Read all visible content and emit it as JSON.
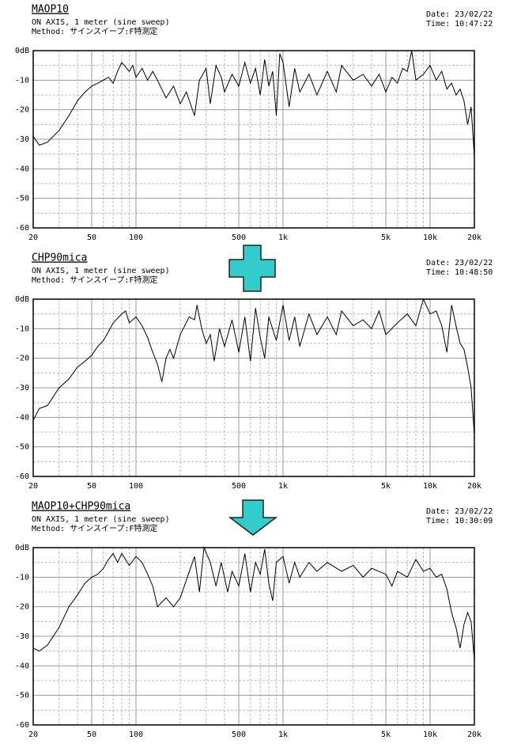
{
  "chart_data": [
    {
      "type": "line",
      "title": "MAOP10",
      "subtitle": "ON AXIS, 1 meter (sine sweep)",
      "method": "Method: サインスイープ:F特測定",
      "date": "Date: 23/02/22",
      "time": "Time: 10:47:22",
      "xscale": "log",
      "grid": true,
      "xlim": [
        20,
        20000
      ],
      "ylim": [
        -60,
        0
      ],
      "xticks": [
        20,
        50,
        100,
        500,
        {
          "value": 1000,
          "label": "1k"
        },
        {
          "value": 5000,
          "label": "5k"
        },
        {
          "value": 10000,
          "label": "10k"
        },
        {
          "value": 20000,
          "label": "20k"
        }
      ],
      "minor_xticks": [
        30,
        40,
        60,
        70,
        80,
        90,
        200,
        300,
        400,
        600,
        700,
        800,
        900,
        2000,
        3000,
        4000,
        6000,
        7000,
        8000,
        9000
      ],
      "yticks": [
        {
          "value": 0,
          "label": "0dB"
        },
        -10,
        -20,
        -30,
        -40,
        -50,
        -60
      ],
      "minor_yticks": [
        -5,
        -15,
        -25,
        -35,
        -45,
        -55
      ],
      "series": [
        {
          "color": "#000000",
          "x": [
            20,
            22,
            25,
            30,
            35,
            40,
            45,
            50,
            55,
            60,
            65,
            70,
            75,
            80,
            90,
            95,
            100,
            110,
            120,
            130,
            140,
            160,
            180,
            200,
            220,
            250,
            270,
            300,
            320,
            350,
            380,
            400,
            450,
            500,
            550,
            600,
            650,
            700,
            750,
            800,
            850,
            900,
            950,
            1000,
            1100,
            1200,
            1300,
            1500,
            1700,
            2000,
            2300,
            2500,
            3000,
            3500,
            4000,
            4500,
            5000,
            5500,
            6000,
            6500,
            7000,
            7500,
            8000,
            9000,
            10000,
            11000,
            12000,
            13000,
            14000,
            15000,
            16000,
            17000,
            18000,
            19000,
            20000
          ],
          "values": [
            -29,
            -32,
            -31,
            -27,
            -22,
            -17,
            -14,
            -12,
            -11,
            -10,
            -9,
            -11,
            -7,
            -4,
            -7,
            -5,
            -9,
            -6,
            -10,
            -7,
            -10,
            -16,
            -12,
            -18,
            -14,
            -22,
            -10,
            -6,
            -18,
            -5,
            -9,
            -14,
            -8,
            -12,
            -4,
            -11,
            -6,
            -15,
            -3,
            -12,
            -7,
            -22,
            -1,
            -4,
            -19,
            -6,
            -14,
            -8,
            -15,
            -7,
            -14,
            -5,
            -10,
            -8,
            -12,
            -8,
            -14,
            -9,
            -11,
            -6,
            -7,
            0,
            -10,
            -8,
            -5,
            -10,
            -7,
            -13,
            -11,
            -15,
            -13,
            -17,
            -25,
            -19,
            -36
          ]
        }
      ]
    },
    {
      "type": "line",
      "title": "CHP90mica",
      "subtitle": "ON AXIS, 1 meter (sine sweep)",
      "method": "Method: サインスイープ:F特測定",
      "date": "Date: 23/02/22",
      "time": "Time: 10:48:50",
      "xscale": "log",
      "grid": true,
      "xlim": [
        20,
        20000
      ],
      "ylim": [
        -60,
        0
      ],
      "xticks": [
        20,
        50,
        100,
        500,
        {
          "value": 1000,
          "label": "1k"
        },
        {
          "value": 5000,
          "label": "5k"
        },
        {
          "value": 10000,
          "label": "10k"
        },
        {
          "value": 20000,
          "label": "20k"
        }
      ],
      "minor_xticks": [
        30,
        40,
        60,
        70,
        80,
        90,
        200,
        300,
        400,
        600,
        700,
        800,
        900,
        2000,
        3000,
        4000,
        6000,
        7000,
        8000,
        9000
      ],
      "yticks": [
        {
          "value": 0,
          "label": "0dB"
        },
        -10,
        -20,
        -30,
        -40,
        -50,
        -60
      ],
      "minor_yticks": [
        -5,
        -15,
        -25,
        -35,
        -45,
        -55
      ],
      "series": [
        {
          "color": "#000000",
          "x": [
            20,
            22,
            25,
            30,
            35,
            40,
            45,
            50,
            55,
            60,
            65,
            70,
            80,
            85,
            90,
            100,
            110,
            120,
            130,
            140,
            150,
            160,
            170,
            180,
            200,
            230,
            250,
            260,
            280,
            300,
            320,
            340,
            370,
            400,
            450,
            500,
            550,
            600,
            650,
            700,
            750,
            800,
            900,
            1000,
            1100,
            1200,
            1300,
            1500,
            1700,
            2000,
            2300,
            2500,
            3000,
            3500,
            4000,
            4500,
            5000,
            6000,
            7000,
            8000,
            9000,
            10000,
            11000,
            12000,
            13000,
            14000,
            15000,
            16000,
            17000,
            18000,
            19000,
            20000
          ],
          "values": [
            -41,
            -37,
            -36,
            -30,
            -27,
            -23,
            -21,
            -19,
            -16,
            -14,
            -11,
            -8,
            -5,
            -4,
            -8,
            -6,
            -9,
            -13,
            -18,
            -22,
            -28,
            -20,
            -17,
            -20,
            -12,
            -6,
            -7,
            -2,
            -10,
            -15,
            -12,
            -21,
            -10,
            -16,
            -7,
            -18,
            -6,
            -21,
            -3,
            -13,
            -20,
            -6,
            -14,
            -2,
            -14,
            -6,
            -16,
            -5,
            -12,
            -6,
            -12,
            -4,
            -9,
            -7,
            -10,
            -4,
            -12,
            -8,
            -5,
            -9,
            0,
            -5,
            -4,
            -9,
            -18,
            -2,
            -9,
            -15,
            -17,
            -23,
            -30,
            -46
          ]
        }
      ]
    },
    {
      "type": "line",
      "title": "MAOP10+CHP90mica",
      "subtitle": "ON AXIS, 1 meter (sine sweep)",
      "method": "Method: サインスイープ:F特測定",
      "date": "Date: 23/02/22",
      "time": "Time: 10:30:09",
      "xscale": "log",
      "grid": true,
      "xlim": [
        20,
        20000
      ],
      "ylim": [
        -60,
        0
      ],
      "xticks": [
        20,
        50,
        100,
        500,
        {
          "value": 1000,
          "label": "1k"
        },
        {
          "value": 5000,
          "label": "5k"
        },
        {
          "value": 10000,
          "label": "10k"
        },
        {
          "value": 20000,
          "label": "20k"
        }
      ],
      "minor_xticks": [
        30,
        40,
        60,
        70,
        80,
        90,
        200,
        300,
        400,
        600,
        700,
        800,
        900,
        2000,
        3000,
        4000,
        6000,
        7000,
        8000,
        9000
      ],
      "yticks": [
        {
          "value": 0,
          "label": "0dB"
        },
        -10,
        -20,
        -30,
        -40,
        -50,
        -60
      ],
      "minor_yticks": [
        -5,
        -15,
        -25,
        -35,
        -45,
        -55
      ],
      "series": [
        {
          "color": "#000000",
          "x": [
            20,
            22,
            25,
            30,
            35,
            40,
            45,
            50,
            55,
            60,
            65,
            70,
            75,
            80,
            90,
            100,
            110,
            120,
            130,
            140,
            160,
            180,
            200,
            220,
            250,
            270,
            290,
            320,
            350,
            380,
            420,
            450,
            500,
            550,
            600,
            650,
            700,
            750,
            800,
            850,
            900,
            1000,
            1100,
            1200,
            1300,
            1500,
            1700,
            2000,
            2500,
            3000,
            3500,
            4000,
            5000,
            5500,
            6000,
            7000,
            8000,
            9000,
            10000,
            11000,
            12000,
            13000,
            14000,
            15000,
            16000,
            17000,
            18000,
            19000,
            20000
          ],
          "values": [
            -34,
            -35,
            -33,
            -27,
            -20,
            -16,
            -12,
            -10,
            -9,
            -7,
            -4,
            -2,
            -5,
            -2,
            -6,
            -3,
            -5,
            -9,
            -13,
            -20,
            -17,
            -20,
            -17,
            -11,
            -3,
            -15,
            0,
            -5,
            -13,
            -5,
            -15,
            -8,
            -13,
            -2,
            -15,
            -5,
            -9,
            -0.5,
            -12,
            -18,
            -5,
            -3,
            -12,
            -5,
            -10,
            -5,
            -8,
            -5,
            -8,
            -6,
            -10,
            -7,
            -9,
            -13,
            -8,
            -10,
            -4,
            -8,
            -7,
            -10,
            -9,
            -14,
            -22,
            -27,
            -34,
            -26,
            -22,
            -25,
            -38
          ]
        }
      ]
    }
  ]
}
